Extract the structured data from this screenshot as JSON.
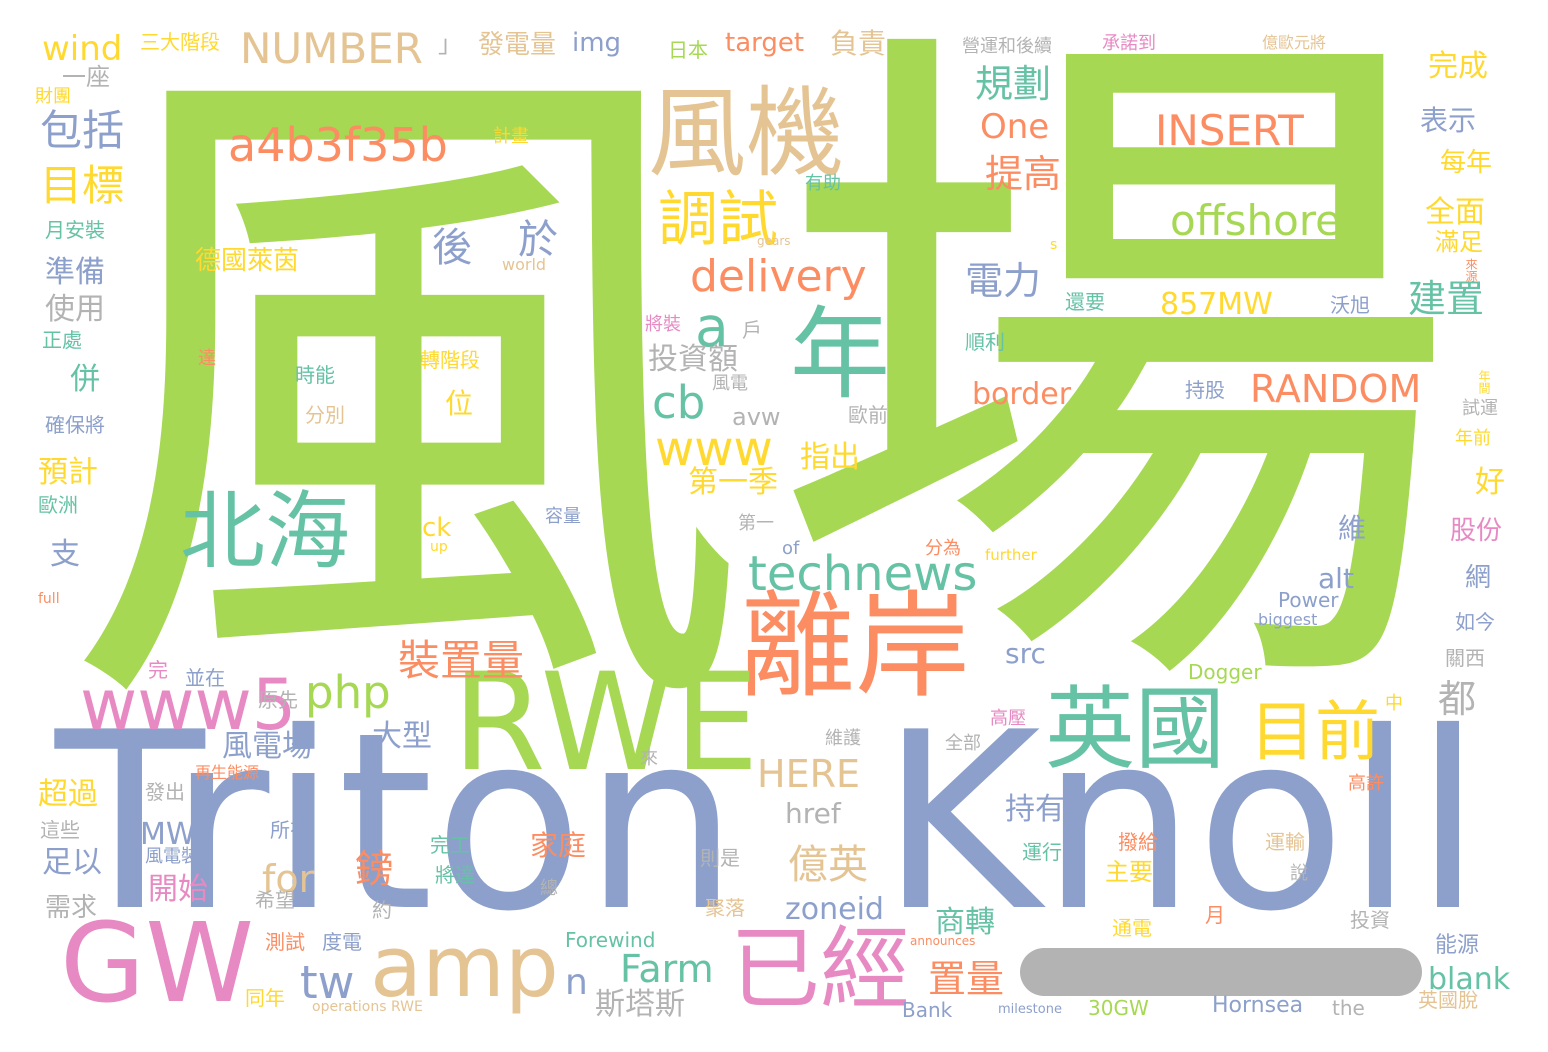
{
  "palette": {
    "green": "#a6d854",
    "blue": "#8da0cb",
    "tan": "#e5c494",
    "orange": "#fc8d62",
    "teal": "#66c2a5",
    "pink": "#e78ac3",
    "yellow": "#ffd92f",
    "gray": "#b3b3b3"
  },
  "words": [
    "風",
    "場",
    "Triton",
    "Knoll",
    "風機",
    "年",
    "離岸",
    "RWE",
    "GW",
    "北海",
    "英國",
    "已經",
    "amp",
    "www5",
    "目前",
    "technews",
    "調試",
    "delivery",
    "a4b3f35b",
    "INSERT",
    "offshore",
    "RANDOM",
    "NUMBER",
    "php",
    "www",
    "cb",
    "a",
    "包括",
    "目標",
    "規劃",
    "提高",
    "One",
    "電力",
    "建置",
    "857MW",
    "裝置量",
    "Farm",
    "HERE",
    "tw",
    "for",
    "億英",
    "wind",
    "後",
    "於",
    "德國萊茵",
    "border",
    "zoneid",
    "n",
    "置量",
    "斯塔斯",
    "blank",
    "src",
    "都",
    "商轉",
    "鎊",
    "開始",
    "大型",
    "風電場",
    "準備",
    "使用",
    "預計",
    "投資額",
    "指出",
    "第一季",
    "href",
    "持有",
    "alt",
    "MW",
    "超過",
    "足以",
    "需求",
    "完成",
    "表示",
    "每年",
    "全面",
    "滿足",
    "好",
    "股份",
    "網",
    "維",
    "img",
    "target",
    "負責",
    "發電量",
    "三大階段",
    "日本",
    "一座",
    "家庭",
    "avw",
    "位",
    "Hornsea",
    "Dogger",
    "Power",
    "Forewind",
    "30GW",
    "Bank",
    "the",
    "of",
    "world",
    "biggest",
    "further",
    "milestone",
    "operations RWE",
    "announces",
    "up",
    "ck",
    "gears",
    "s",
    "full",
    "營運和後續",
    "承諾到",
    "億歐元將",
    "財團",
    "計畫",
    "有助",
    "月安裝",
    "正處",
    "時能",
    "轉階段",
    "分別",
    "確保將",
    "歐洲",
    "容量",
    "第一",
    "分為",
    "將裝",
    "戶",
    "風電",
    "歐前",
    "達",
    "沃旭",
    "順利",
    "還要",
    "持股",
    "試運",
    "年前",
    "如今",
    "關西",
    "中",
    "高壓",
    "維護",
    "全部",
    "高許",
    "運輸",
    "撥給",
    "運行",
    "主要",
    "通電",
    "月",
    "投資",
    "能源",
    "英國脫",
    "再生能源",
    "發出",
    "所有",
    "這些",
    "風電裝",
    "希望",
    "約",
    "測試",
    "度電",
    "同年",
    "完工",
    "將達",
    "聚落",
    "則是",
    "說",
    "總",
    "來",
    "完",
    "並在",
    "原先",
    "併",
    "支",
    "來源",
    "年間",
    "」"
  ]
}
